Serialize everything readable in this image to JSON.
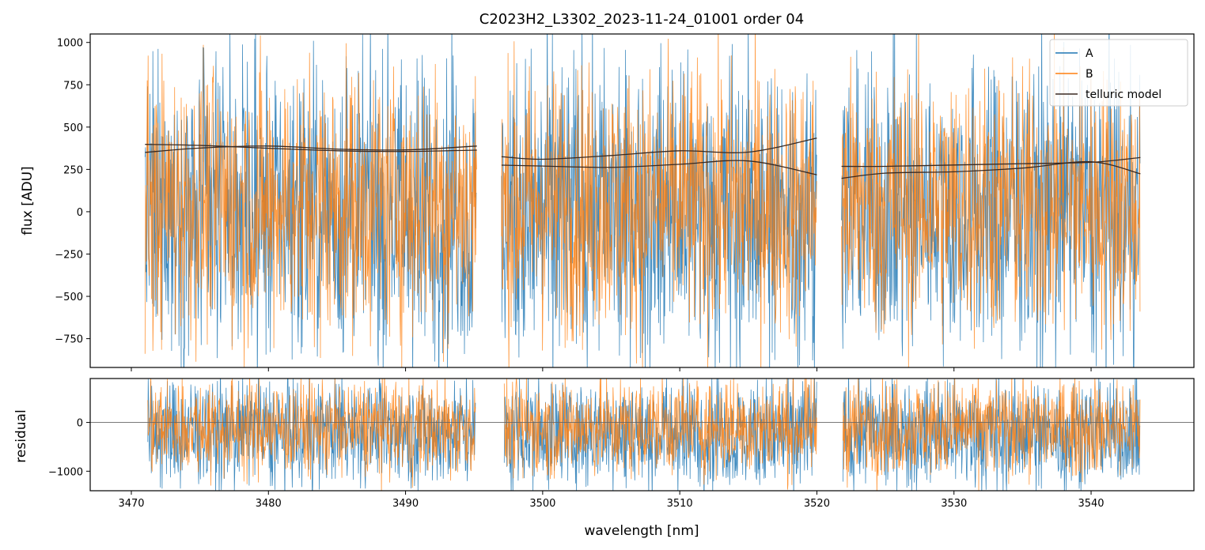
{
  "figure_title": "C2023H2_L3302_2023-11-24_01001  order 04",
  "colors": {
    "A": "#1f77b4",
    "B": "#ff7f0e",
    "model": "#3a2a22",
    "zero_line": "#666666"
  },
  "chart_data": [
    {
      "panel": "flux",
      "type": "line",
      "ylabel": "flux [ADU]",
      "xlabel": "",
      "xlim": [
        3467,
        3547.5
      ],
      "ylim": [
        -920,
        1050
      ],
      "yticks": [
        -750,
        -500,
        -250,
        0,
        250,
        500,
        750,
        1000
      ],
      "ytick_labels": [
        "−750",
        "−500",
        "−250",
        "0",
        "250",
        "500",
        "750",
        "1000"
      ],
      "xticks": [
        3470,
        3480,
        3490,
        3500,
        3510,
        3520,
        3530,
        3540
      ],
      "show_xtick_labels": false,
      "legend_placement": "top-right",
      "legend": [
        "A",
        "B",
        "telluric model"
      ],
      "segments_nm": [
        [
          3471.0,
          3495.2
        ],
        [
          3497.0,
          3520.0
        ],
        [
          3521.8,
          3543.6
        ]
      ],
      "series": [
        {
          "name": "A",
          "noise": {
            "center": 50,
            "sigma": 420,
            "low_side_extra": 150
          }
        },
        {
          "name": "B",
          "noise": {
            "center": 50,
            "sigma": 400,
            "low_side_extra": 0
          }
        },
        {
          "name": "telluric model",
          "curves": [
            {
              "x": [
                3471.0,
                3475.0,
                3480.0,
                3485.0,
                3490.0,
                3495.2
              ],
              "y": [
                398,
                392,
                375,
                360,
                356,
                364
              ]
            },
            {
              "x": [
                3471.0,
                3475.0,
                3480.0,
                3485.0,
                3490.0,
                3495.2
              ],
              "y": [
                350,
                376,
                388,
                370,
                365,
                388
              ]
            },
            {
              "x": [
                3497.0,
                3500.0,
                3505.0,
                3510.0,
                3515.0,
                3520.0
              ],
              "y": [
                325,
                310,
                332,
                360,
                352,
                435
              ]
            },
            {
              "x": [
                3497.0,
                3500.0,
                3505.0,
                3510.0,
                3515.0,
                3520.0
              ],
              "y": [
                275,
                270,
                262,
                280,
                300,
                218
              ]
            },
            {
              "x": [
                3521.8,
                3525.0,
                3530.0,
                3535.0,
                3540.0,
                3543.6
              ],
              "y": [
                268,
                268,
                276,
                284,
                292,
                320
              ]
            },
            {
              "x": [
                3521.8,
                3525.0,
                3530.0,
                3535.0,
                3540.0,
                3543.6
              ],
              "y": [
                197,
                228,
                236,
                258,
                295,
                224
              ]
            }
          ]
        }
      ]
    },
    {
      "panel": "residual",
      "type": "line",
      "ylabel": "residual",
      "xlabel": "wavelength [nm]",
      "xlim": [
        3467,
        3547.5
      ],
      "ylim": [
        -1400,
        900
      ],
      "yticks": [
        -1000,
        0
      ],
      "ytick_labels": [
        "−1000",
        "0"
      ],
      "xticks": [
        3470,
        3480,
        3490,
        3500,
        3510,
        3520,
        3530,
        3540
      ],
      "xtick_labels": [
        "3470",
        "3480",
        "3490",
        "3500",
        "3510",
        "3520",
        "3530",
        "3540"
      ],
      "zero_line": 0,
      "segments_nm": [
        [
          3471.2,
          3495.1
        ],
        [
          3497.2,
          3520.0
        ],
        [
          3521.9,
          3543.6
        ]
      ],
      "series": [
        {
          "name": "A",
          "noise": {
            "center": -150,
            "sigma": 520,
            "low_side_extra": 250
          }
        },
        {
          "name": "B",
          "noise": {
            "center": -100,
            "sigma": 500,
            "low_side_extra": 0
          }
        }
      ]
    }
  ]
}
